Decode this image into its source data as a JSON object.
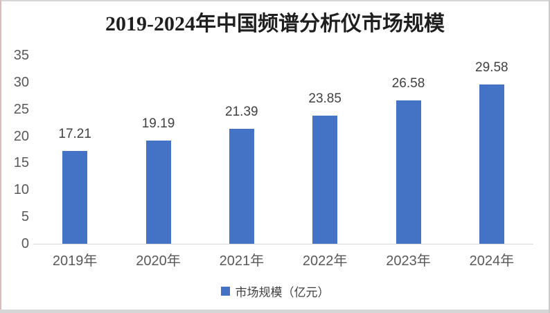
{
  "chart_data": {
    "type": "bar",
    "title": "2019-2024年中国频谱分析仪市场规模",
    "categories": [
      "2019年",
      "2020年",
      "2021年",
      "2022年",
      "2023年",
      "2024年"
    ],
    "values": [
      17.21,
      19.19,
      21.39,
      23.85,
      26.58,
      29.58
    ],
    "data_labels": [
      "17.21",
      "19.19",
      "21.39",
      "23.85",
      "26.58",
      "29.58"
    ],
    "xlabel": "",
    "ylabel": "",
    "ylim": [
      0,
      35
    ],
    "yticks": [
      0,
      5,
      10,
      15,
      20,
      25,
      30,
      35
    ],
    "grid": false,
    "bar_color": "#4472C4",
    "axis_line_color": "#d9d9d9",
    "tick_label_color": "#595959",
    "data_label_color": "#404040",
    "title_color": "#1f1f1f",
    "legend": {
      "label": "市场规模（亿元）",
      "position": "bottom",
      "swatch_color": "#4472C4"
    }
  },
  "window": {
    "border_left_color": "#dfbaba",
    "border_top_color": "#d6d6d6",
    "border_right_color": "#cbcbcb",
    "border_bottom_color": "#d6d6d6",
    "background": "#ffffff"
  }
}
